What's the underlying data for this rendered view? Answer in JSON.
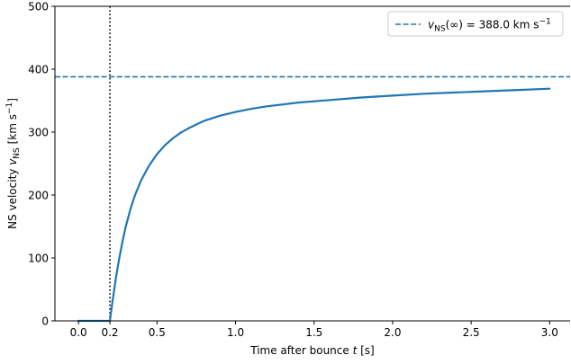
{
  "chart_data": {
    "type": "line",
    "xlabel_prefix": "Time after bounce ",
    "xlabel_var": "t",
    "xlabel_unit": " [s]",
    "ylabel_prefix": "NS velocity ",
    "ylabel_var": "v",
    "ylabel_sub": "NS",
    "ylabel_unit": " [km s",
    "ylabel_sup": "−1",
    "ylabel_close": "]",
    "xlim": [
      -0.15,
      3.13
    ],
    "ylim": [
      0,
      500
    ],
    "x_ticks": [
      0.0,
      0.2,
      0.5,
      1.0,
      1.5,
      2.0,
      2.5,
      3.0
    ],
    "x_tick_labels": [
      "0.0",
      "0.2",
      "0.5",
      "1.0",
      "1.5",
      "2.0",
      "2.5",
      "3.0"
    ],
    "y_ticks": [
      0,
      100,
      200,
      300,
      400,
      500
    ],
    "y_tick_labels": [
      "0",
      "100",
      "200",
      "300",
      "400",
      "500"
    ],
    "grid": false,
    "legend_position": "top-right",
    "legend_label_var": "v",
    "legend_label_sub": "NS",
    "legend_label_arg": "(∞) = 388.0 km s",
    "legend_label_sup": "−1",
    "series": [
      {
        "style": "solid",
        "color": "#1f77b4",
        "x": [
          0.0,
          0.1,
          0.2,
          0.21,
          0.22,
          0.24,
          0.26,
          0.28,
          0.3,
          0.33,
          0.36,
          0.4,
          0.45,
          0.5,
          0.55,
          0.6,
          0.65,
          0.7,
          0.8,
          0.9,
          1.0,
          1.1,
          1.2,
          1.4,
          1.6,
          1.8,
          2.0,
          2.2,
          2.4,
          2.6,
          2.8,
          3.0
        ],
        "y": [
          0,
          0,
          0,
          19,
          37,
          71,
          100,
          126,
          149,
          177,
          200,
          224,
          247,
          265,
          279,
          290,
          299,
          306,
          318,
          326,
          332,
          337,
          341,
          347,
          351,
          355,
          358,
          361,
          363,
          365,
          367,
          369
        ]
      }
    ],
    "reference_lines": [
      {
        "orientation": "horizontal",
        "value": 388.0,
        "style": "dashed",
        "color": "#1f77b4"
      },
      {
        "orientation": "vertical",
        "value": 0.2,
        "style": "dotted",
        "color": "#000000"
      }
    ]
  }
}
